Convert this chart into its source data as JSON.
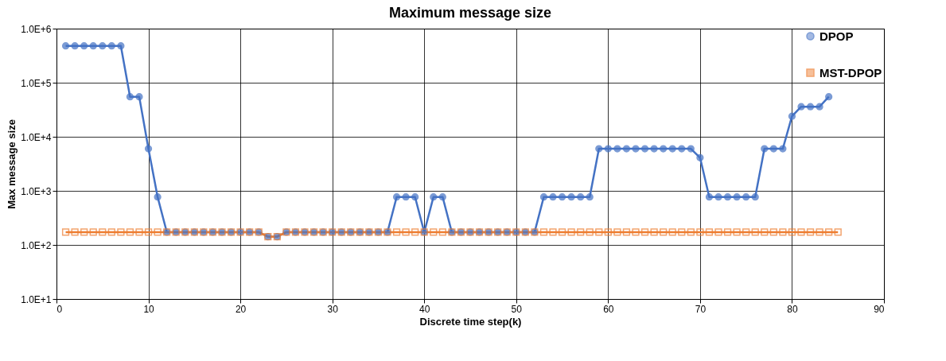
{
  "chart_data": {
    "type": "line",
    "title": "Maximum message size",
    "xlabel": "Discrete time step(k)",
    "ylabel": "Max message size",
    "xlim": [
      0,
      90
    ],
    "xticks": [
      0,
      10,
      20,
      30,
      40,
      50,
      60,
      70,
      80,
      90
    ],
    "ylim": [
      10,
      1000000
    ],
    "log": true,
    "yticks": [
      {
        "value": 10,
        "label": "1.0E+1"
      },
      {
        "value": 100,
        "label": "1.0E+2"
      },
      {
        "value": 1000,
        "label": "1.0E+3"
      },
      {
        "value": 10000,
        "label": "1.0E+4"
      },
      {
        "value": 100000,
        "label": "1.0E+5"
      },
      {
        "value": 1000000,
        "label": "1.0E+6"
      }
    ],
    "grid": true,
    "legend": "top right",
    "series": [
      {
        "name": "DPOP",
        "color": "#4472c4",
        "marker": "circle",
        "line_style": "solid",
        "x": [
          1,
          2,
          3,
          4,
          5,
          6,
          7,
          8,
          9,
          10,
          11,
          12,
          13,
          14,
          15,
          16,
          17,
          18,
          19,
          20,
          21,
          22,
          23,
          24,
          25,
          26,
          27,
          28,
          29,
          30,
          31,
          32,
          33,
          34,
          35,
          36,
          37,
          38,
          39,
          40,
          41,
          42,
          43,
          44,
          45,
          46,
          47,
          48,
          49,
          50,
          51,
          52,
          53,
          54,
          55,
          56,
          57,
          58,
          59,
          60,
          61,
          62,
          63,
          64,
          65,
          66,
          67,
          68,
          69,
          70,
          71,
          72,
          73,
          74,
          75,
          76,
          77,
          78,
          79,
          80,
          81,
          82,
          83,
          84
        ],
        "values": [
          480000,
          480000,
          480000,
          480000,
          480000,
          480000,
          480000,
          55000,
          55000,
          6000,
          770,
          172,
          172,
          172,
          172,
          172,
          172,
          172,
          172,
          172,
          172,
          172,
          142,
          142,
          172,
          172,
          172,
          172,
          172,
          172,
          172,
          172,
          172,
          172,
          172,
          172,
          770,
          770,
          770,
          172,
          770,
          770,
          172,
          172,
          172,
          172,
          172,
          172,
          172,
          172,
          172,
          172,
          770,
          770,
          770,
          770,
          770,
          770,
          6000,
          6000,
          6000,
          6000,
          6000,
          6000,
          6000,
          6000,
          6000,
          6000,
          6000,
          4100,
          770,
          770,
          770,
          770,
          770,
          770,
          6000,
          6000,
          6000,
          24000,
          36000,
          36000,
          36000,
          55000
        ]
      },
      {
        "name": "MST-DPOP",
        "color": "#ed7d31",
        "marker": "square",
        "line_style": "solid",
        "x": [
          1,
          2,
          3,
          4,
          5,
          6,
          7,
          8,
          9,
          10,
          11,
          12,
          13,
          14,
          15,
          16,
          17,
          18,
          19,
          20,
          21,
          22,
          23,
          24,
          25,
          26,
          27,
          28,
          29,
          30,
          31,
          32,
          33,
          34,
          35,
          36,
          37,
          38,
          39,
          40,
          41,
          42,
          43,
          44,
          45,
          46,
          47,
          48,
          49,
          50,
          51,
          52,
          53,
          54,
          55,
          56,
          57,
          58,
          59,
          60,
          61,
          62,
          63,
          64,
          65,
          66,
          67,
          68,
          69,
          70,
          71,
          72,
          73,
          74,
          75,
          76,
          77,
          78,
          79,
          80,
          81,
          82,
          83,
          84,
          85
        ],
        "values": [
          172,
          172,
          172,
          172,
          172,
          172,
          172,
          172,
          172,
          172,
          172,
          172,
          172,
          172,
          172,
          172,
          172,
          172,
          172,
          172,
          172,
          172,
          142,
          142,
          172,
          172,
          172,
          172,
          172,
          172,
          172,
          172,
          172,
          172,
          172,
          172,
          172,
          172,
          172,
          172,
          172,
          172,
          172,
          172,
          172,
          172,
          172,
          172,
          172,
          172,
          172,
          172,
          172,
          172,
          172,
          172,
          172,
          172,
          172,
          172,
          172,
          172,
          172,
          172,
          172,
          172,
          172,
          172,
          172,
          172,
          172,
          172,
          172,
          172,
          172,
          172,
          172,
          172,
          172,
          172,
          172,
          172,
          172,
          172,
          172
        ]
      }
    ]
  }
}
